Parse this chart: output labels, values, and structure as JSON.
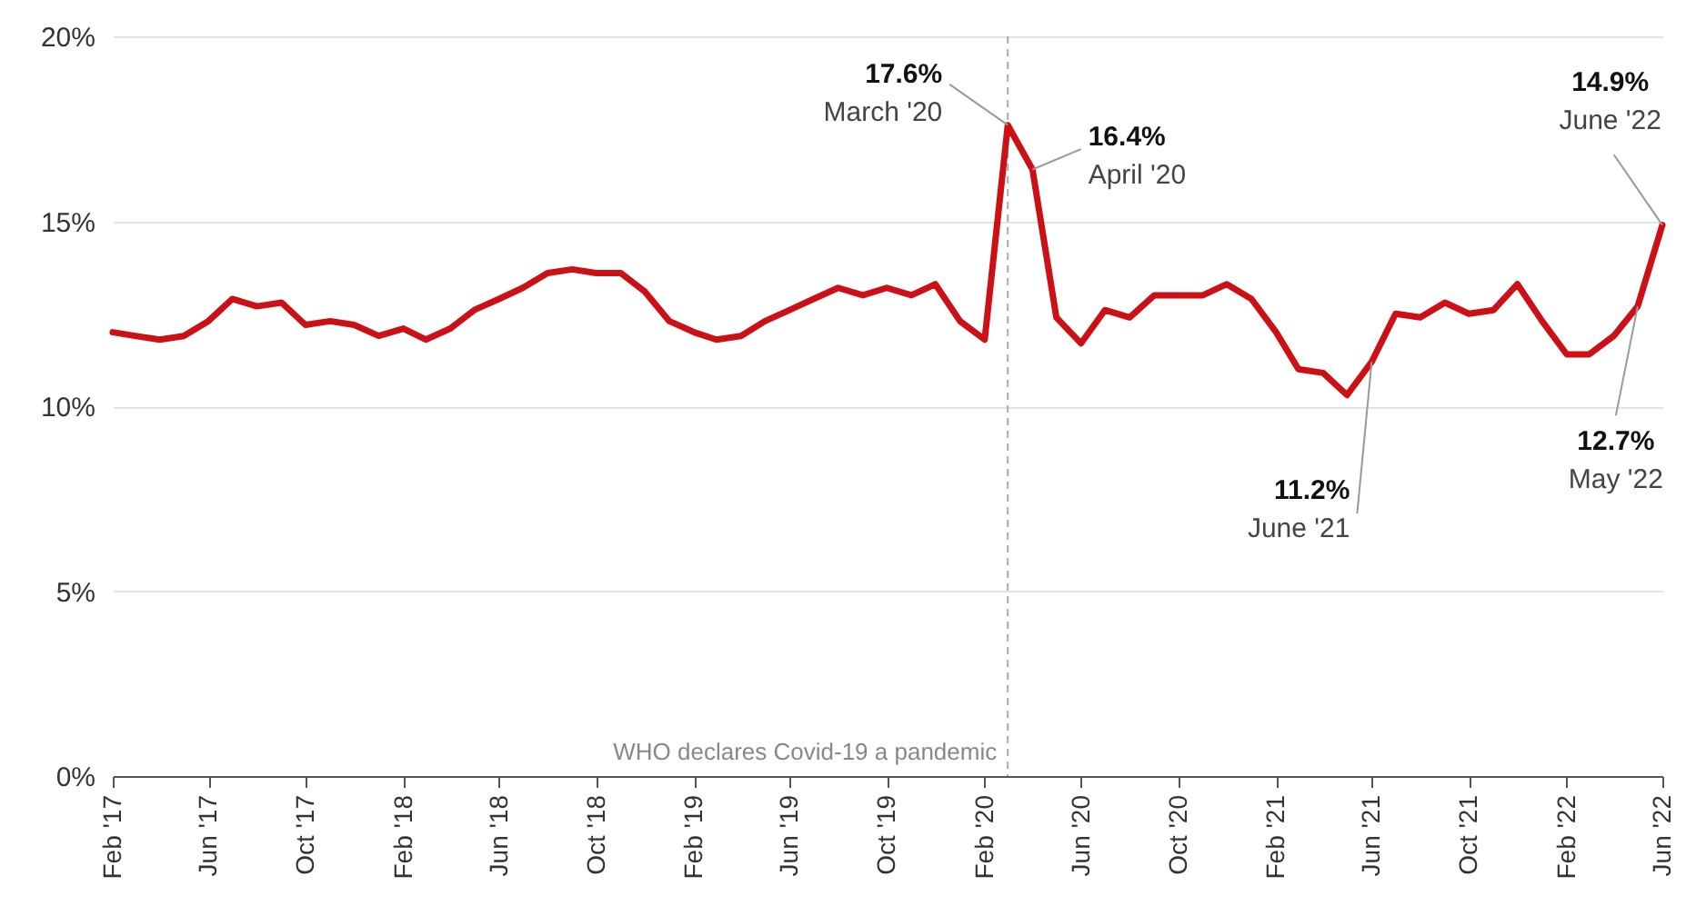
{
  "chart_data": {
    "type": "line",
    "x": [
      "2017-02",
      "2017-03",
      "2017-04",
      "2017-05",
      "2017-06",
      "2017-07",
      "2017-08",
      "2017-09",
      "2017-10",
      "2017-11",
      "2017-12",
      "2018-01",
      "2018-02",
      "2018-03",
      "2018-04",
      "2018-05",
      "2018-06",
      "2018-07",
      "2018-08",
      "2018-09",
      "2018-10",
      "2018-11",
      "2018-12",
      "2019-01",
      "2019-02",
      "2019-03",
      "2019-04",
      "2019-05",
      "2019-06",
      "2019-07",
      "2019-08",
      "2019-09",
      "2019-10",
      "2019-11",
      "2019-12",
      "2020-01",
      "2020-02",
      "2020-03",
      "2020-04",
      "2020-05",
      "2020-06",
      "2020-07",
      "2020-08",
      "2020-09",
      "2020-10",
      "2020-11",
      "2020-12",
      "2021-01",
      "2021-02",
      "2021-03",
      "2021-04",
      "2021-05",
      "2021-06",
      "2021-07",
      "2021-08",
      "2021-09",
      "2021-10",
      "2021-11",
      "2021-12",
      "2022-01",
      "2022-02",
      "2022-03",
      "2022-04",
      "2022-05",
      "2022-06"
    ],
    "series": [
      {
        "color": "#cc1016",
        "values": [
          12.0,
          11.9,
          11.8,
          11.9,
          12.3,
          12.9,
          12.7,
          12.8,
          12.2,
          12.3,
          12.2,
          11.9,
          12.1,
          11.8,
          12.1,
          12.6,
          12.9,
          13.2,
          13.6,
          13.7,
          13.6,
          13.6,
          13.1,
          12.3,
          12.0,
          11.8,
          11.9,
          12.3,
          12.6,
          12.9,
          13.2,
          13.0,
          13.2,
          13.0,
          13.3,
          12.3,
          11.8,
          17.6,
          16.4,
          12.4,
          11.7,
          12.6,
          12.4,
          13.0,
          13.0,
          13.0,
          13.3,
          12.9,
          12.0,
          11.0,
          10.9,
          10.3,
          11.2,
          12.5,
          12.4,
          12.8,
          12.5,
          12.6,
          13.3,
          12.3,
          11.4,
          11.4,
          11.9,
          12.7,
          14.9
        ]
      }
    ],
    "xlim": [
      "2017-02",
      "2022-06"
    ],
    "xticks": [
      {
        "value": "2017-02",
        "label": "Feb '17"
      },
      {
        "value": "2017-06",
        "label": "Jun '17"
      },
      {
        "value": "2017-10",
        "label": "Oct '17"
      },
      {
        "value": "2018-02",
        "label": "Feb '18"
      },
      {
        "value": "2018-06",
        "label": "Jun '18"
      },
      {
        "value": "2018-10",
        "label": "Oct '18"
      },
      {
        "value": "2019-02",
        "label": "Feb '19"
      },
      {
        "value": "2019-06",
        "label": "Jun '19"
      },
      {
        "value": "2019-10",
        "label": "Oct '19"
      },
      {
        "value": "2020-02",
        "label": "Feb '20"
      },
      {
        "value": "2020-06",
        "label": "Jun '20"
      },
      {
        "value": "2020-10",
        "label": "Oct '20"
      },
      {
        "value": "2021-02",
        "label": "Feb '21"
      },
      {
        "value": "2021-06",
        "label": "Jun '21"
      },
      {
        "value": "2021-10",
        "label": "Oct '21"
      },
      {
        "value": "2022-02",
        "label": "Feb '22"
      },
      {
        "value": "2022-06",
        "label": "Jun '22"
      }
    ],
    "ylim": [
      0,
      20
    ],
    "yticks": [
      {
        "value": 0,
        "label": "0%"
      },
      {
        "value": 5,
        "label": "5%"
      },
      {
        "value": 10,
        "label": "10%"
      },
      {
        "value": 15,
        "label": "15%"
      },
      {
        "value": 20,
        "label": "20%"
      }
    ],
    "grid": "y",
    "ref_lines": [
      {
        "axis": "x",
        "value": "2020-03",
        "label": "WHO declares Covid-19 a pandemic",
        "color": "#aaaaaa",
        "line_style": "dashed"
      }
    ],
    "annotations": [
      {
        "text": "17.6%\nMarch '20",
        "x": "2020-03",
        "y": 17.6
      },
      {
        "text": "16.4%\nApril '20",
        "x": "2020-04",
        "y": 16.4
      },
      {
        "text": "11.2%\nJune '21",
        "x": "2021-06",
        "y": 11.2
      },
      {
        "text": "12.7%\nMay '22",
        "x": "2022-05",
        "y": 12.7
      },
      {
        "text": "14.9%\nJune '22",
        "x": "2022-06",
        "y": 14.9
      }
    ]
  }
}
